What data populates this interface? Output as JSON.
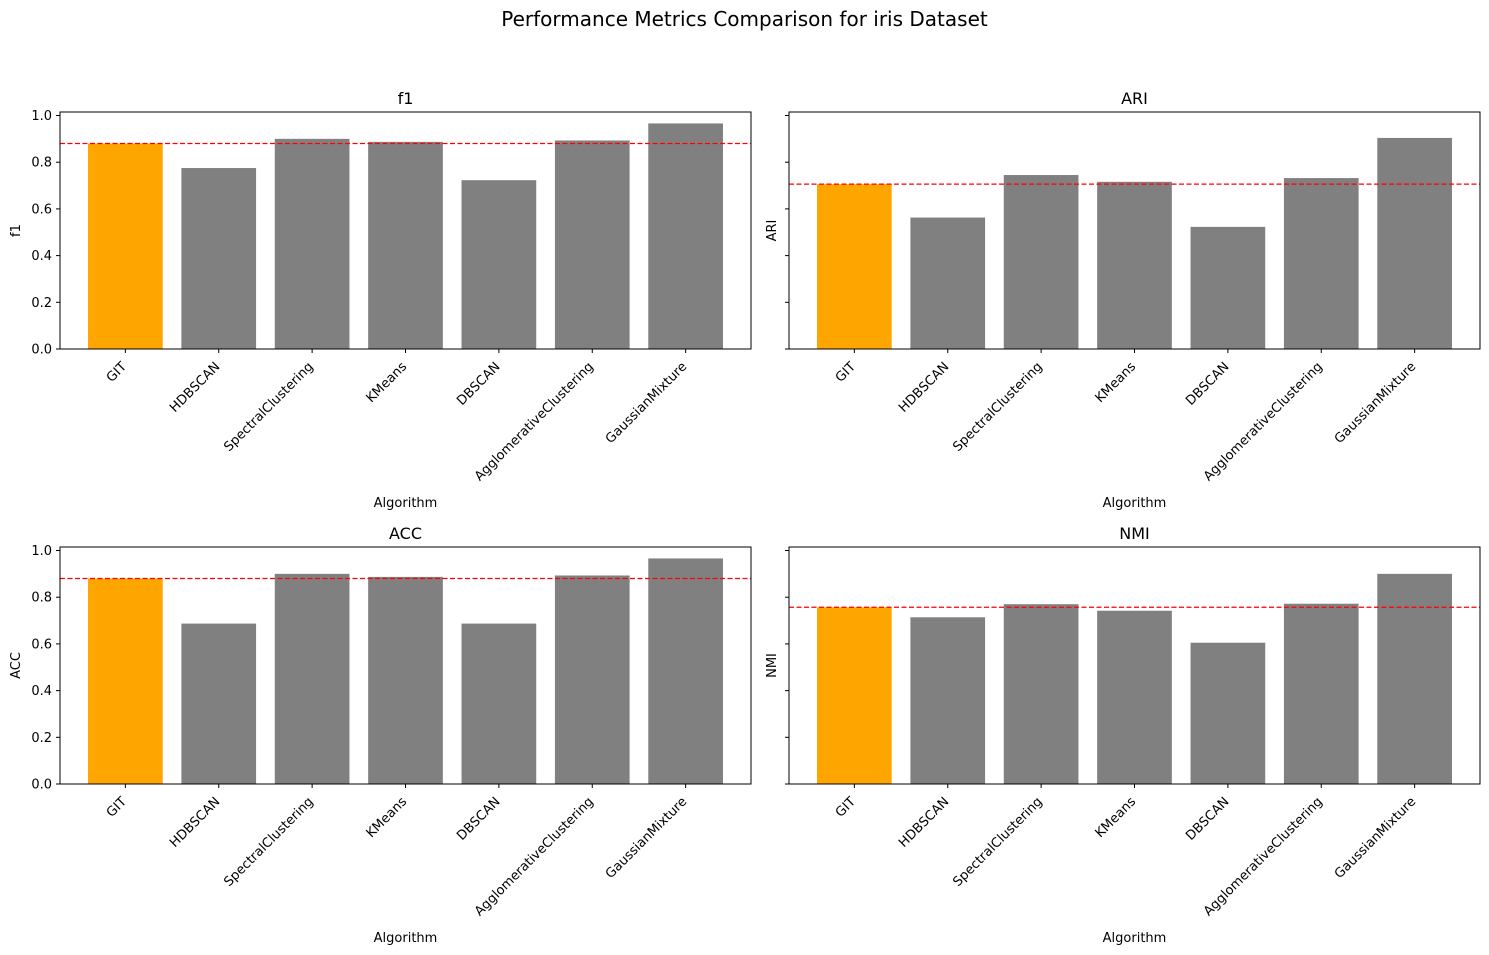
{
  "figure": {
    "suptitle": "Performance Metrics Comparison for iris Dataset"
  },
  "chart_data": [
    {
      "type": "bar",
      "title": "f1",
      "xlabel": "Algorithm",
      "ylabel": "f1",
      "categories": [
        "GIT",
        "HDBSCAN",
        "SpectralClustering",
        "KMeans",
        "DBSCAN",
        "AgglomerativeClustering",
        "GaussianMixture"
      ],
      "values": [
        0.88,
        0.775,
        0.9,
        0.887,
        0.723,
        0.893,
        0.966
      ],
      "ylim": [
        0,
        1.015
      ],
      "yticks": [
        "0.0",
        "0.2",
        "0.4",
        "0.6",
        "0.8",
        "1.0"
      ],
      "show_ytick_labels": true,
      "reference_line": 0.88
    },
    {
      "type": "bar",
      "title": "ARI",
      "xlabel": "Algorithm",
      "ylabel": "ARI",
      "categories": [
        "GIT",
        "HDBSCAN",
        "SpectralClustering",
        "KMeans",
        "DBSCAN",
        "AgglomerativeClustering",
        "GaussianMixture"
      ],
      "values": [
        0.706,
        0.563,
        0.745,
        0.716,
        0.523,
        0.732,
        0.904
      ],
      "ylim": [
        0,
        1.015
      ],
      "yticks": [
        "0.0",
        "0.2",
        "0.4",
        "0.6",
        "0.8",
        "1.0"
      ],
      "show_ytick_labels": false,
      "reference_line": 0.706
    },
    {
      "type": "bar",
      "title": "ACC",
      "xlabel": "Algorithm",
      "ylabel": "ACC",
      "categories": [
        "GIT",
        "HDBSCAN",
        "SpectralClustering",
        "KMeans",
        "DBSCAN",
        "AgglomerativeClustering",
        "GaussianMixture"
      ],
      "values": [
        0.88,
        0.687,
        0.9,
        0.887,
        0.687,
        0.893,
        0.966
      ],
      "ylim": [
        0,
        1.015
      ],
      "yticks": [
        "0.0",
        "0.2",
        "0.4",
        "0.6",
        "0.8",
        "1.0"
      ],
      "show_ytick_labels": true,
      "reference_line": 0.88
    },
    {
      "type": "bar",
      "title": "NMI",
      "xlabel": "Algorithm",
      "ylabel": "NMI",
      "categories": [
        "GIT",
        "HDBSCAN",
        "SpectralClustering",
        "KMeans",
        "DBSCAN",
        "AgglomerativeClustering",
        "GaussianMixture"
      ],
      "values": [
        0.757,
        0.714,
        0.77,
        0.742,
        0.605,
        0.772,
        0.9
      ],
      "ylim": [
        0,
        1.015
      ],
      "yticks": [
        "0.0",
        "0.2",
        "0.4",
        "0.6",
        "0.8",
        "1.0"
      ],
      "show_ytick_labels": false,
      "reference_line": 0.757
    }
  ],
  "colors": {
    "highlight_bar": "#FFA500",
    "bar": "#808080",
    "reference_line": "#FF0000",
    "axis": "#000000"
  }
}
